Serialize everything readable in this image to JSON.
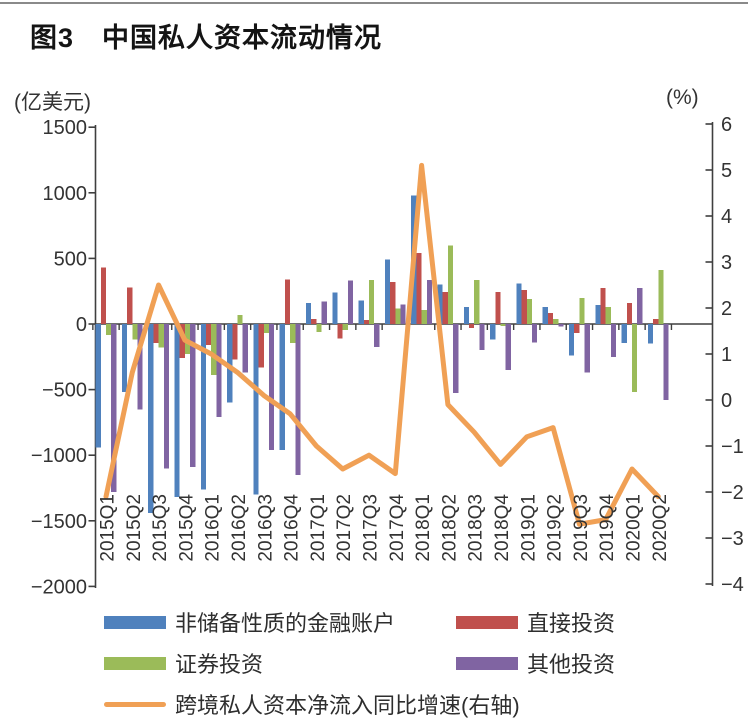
{
  "title": "图3　中国私人资本流动情况",
  "left_axis": {
    "unit": "(亿美元)",
    "tick_labels": [
      "1500",
      "1000",
      "500",
      "0",
      "−500",
      "−1000",
      "−1500",
      "−2000"
    ],
    "tick_values": [
      1500,
      1000,
      500,
      0,
      -500,
      -1000,
      -1500,
      -2000
    ]
  },
  "right_axis": {
    "unit": "(%)",
    "tick_labels": [
      "6",
      "5",
      "4",
      "3",
      "2",
      "1",
      "0",
      "−1",
      "−2",
      "−3",
      "−4"
    ],
    "tick_values": [
      6,
      5,
      4,
      3,
      2,
      1,
      0,
      -1,
      -2,
      -3,
      -4
    ]
  },
  "chart_data": {
    "type": "bar+line",
    "title": "图3 中国私人资本流动情况",
    "xlabel": "",
    "ylabel_left": "亿美元",
    "ylabel_right": "%",
    "left_ylim": [
      -2000,
      1500
    ],
    "right_ylim": [
      -4,
      6
    ],
    "grid": false,
    "legend_position": "bottom",
    "categories": [
      "2015Q1",
      "2015Q2",
      "2015Q3",
      "2015Q4",
      "2016Q1",
      "2016Q2",
      "2016Q3",
      "2016Q4",
      "2017Q1",
      "2017Q2",
      "2017Q3",
      "2017Q4",
      "2018Q1",
      "2018Q2",
      "2018Q3",
      "2018Q4",
      "2019Q1",
      "2019Q2",
      "2019Q3",
      "2019Q4",
      "2020Q1",
      "2020Q2"
    ],
    "series": [
      {
        "name": "非储备性质的金融账户",
        "type": "bar",
        "axis": "left",
        "color": "#4f81bd",
        "values": [
          -940,
          -520,
          -1440,
          -1320,
          -1260,
          -600,
          -1300,
          -960,
          160,
          240,
          180,
          490,
          980,
          300,
          130,
          -120,
          310,
          130,
          -240,
          145,
          -145,
          -150
        ]
      },
      {
        "name": "直接投资",
        "type": "bar",
        "axis": "left",
        "color": "#c0504d",
        "values": [
          430,
          280,
          -145,
          -260,
          -160,
          -270,
          -330,
          340,
          40,
          -110,
          30,
          320,
          540,
          245,
          -30,
          245,
          260,
          85,
          -70,
          275,
          160,
          40
        ]
      },
      {
        "name": "证券投资",
        "type": "bar",
        "axis": "left",
        "color": "#9bbb59",
        "values": [
          -85,
          -120,
          -180,
          -230,
          -390,
          70,
          -70,
          -145,
          -60,
          -45,
          335,
          120,
          105,
          600,
          335,
          -15,
          190,
          40,
          200,
          130,
          -520,
          410
        ]
      },
      {
        "name": "其他投资",
        "type": "bar",
        "axis": "left",
        "color": "#8064a2",
        "values": [
          -1280,
          -650,
          -1100,
          -1090,
          -710,
          -370,
          -960,
          -1150,
          170,
          330,
          -175,
          150,
          335,
          -525,
          -200,
          -350,
          -140,
          -20,
          -370,
          -250,
          275,
          -580
        ]
      },
      {
        "name": "跨境私人资本净流入同比增速(右轴)",
        "type": "line",
        "axis": "right",
        "color": "#f0a055",
        "values": [
          -2.1,
          0.6,
          2.5,
          1.3,
          1.0,
          0.6,
          0.1,
          -0.3,
          -1.0,
          -1.5,
          -1.2,
          -1.6,
          5.1,
          -0.1,
          -0.7,
          -1.4,
          -0.8,
          -0.6,
          -2.7,
          -2.6,
          -1.5,
          -2.1
        ]
      }
    ]
  }
}
